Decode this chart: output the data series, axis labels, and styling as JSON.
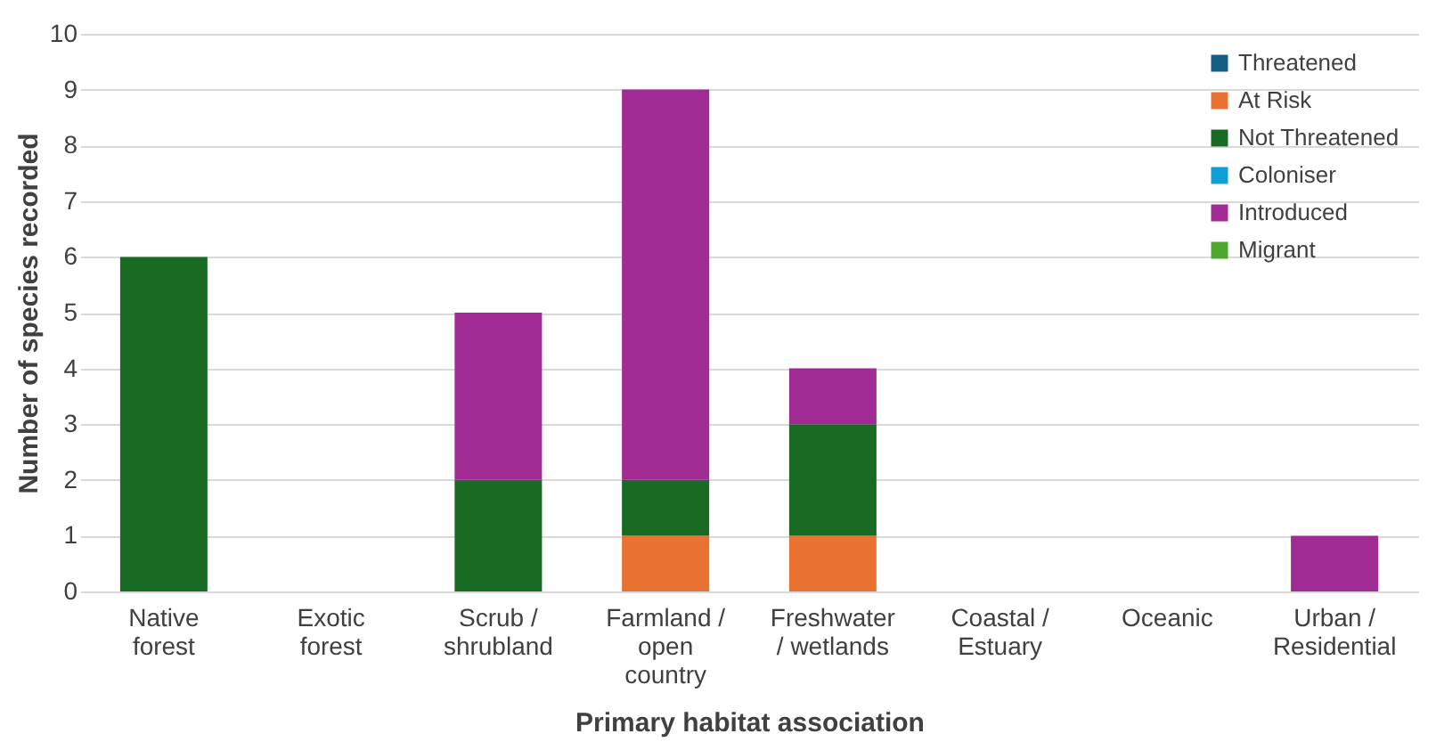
{
  "chart_data": {
    "type": "bar",
    "stacked": true,
    "xlabel": "Primary habitat association",
    "ylabel": "Number of species recorded",
    "categories": [
      "Native forest",
      "Exotic forest",
      "Scrub / shrubland",
      "Farmland / open country",
      "Freshwater / wetlands",
      "Coastal / Estuary",
      "Oceanic",
      "Urban / Residential"
    ],
    "series": [
      {
        "name": "Threatened",
        "color": "#156082",
        "values": [
          0,
          0,
          0,
          0,
          0,
          0,
          0,
          0
        ]
      },
      {
        "name": "At Risk",
        "color": "#e97132",
        "values": [
          0,
          0,
          0,
          1,
          1,
          0,
          0,
          0
        ]
      },
      {
        "name": "Not Threatened",
        "color": "#196b24",
        "values": [
          6,
          0,
          2,
          1,
          2,
          0,
          0,
          0
        ]
      },
      {
        "name": "Coloniser",
        "color": "#0f9ed5",
        "values": [
          0,
          0,
          0,
          0,
          0,
          0,
          0,
          0
        ]
      },
      {
        "name": "Introduced",
        "color": "#a02b93",
        "values": [
          0,
          0,
          3,
          7,
          1,
          0,
          0,
          1
        ]
      },
      {
        "name": "Migrant",
        "color": "#4ea72e",
        "values": [
          0,
          0,
          0,
          0,
          0,
          0,
          0,
          0
        ]
      }
    ],
    "ylim": [
      0,
      10
    ],
    "yticks": [
      0,
      1,
      2,
      3,
      4,
      5,
      6,
      7,
      8,
      9,
      10
    ],
    "grid": "y",
    "legend": "top right"
  }
}
